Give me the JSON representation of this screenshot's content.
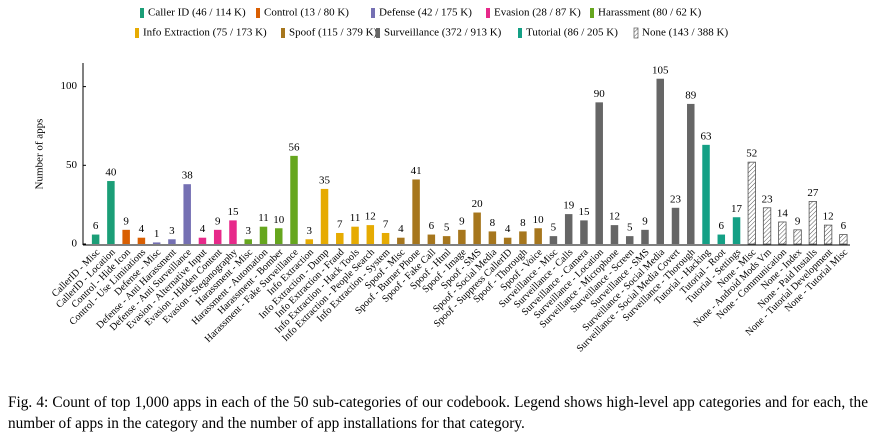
{
  "chart_data": {
    "type": "bar",
    "y_label": "Number of apps",
    "ylim": [
      0,
      115
    ],
    "yticks": [
      0,
      50,
      100
    ],
    "series": [
      {
        "name": "Caller ID (46 / 114 K)",
        "color": "#1b9e77",
        "categories": [
          "CallerID - Misc",
          "CallerID - Location"
        ],
        "values": [
          6,
          40
        ]
      },
      {
        "name": "Control (13 / 80 K)",
        "color": "#d95f02",
        "categories": [
          "Control - Hide Icon",
          "Control - Use Limitations"
        ],
        "values": [
          9,
          4
        ]
      },
      {
        "name": "Defense (42 / 175 K)",
        "color": "#7570b3",
        "categories": [
          "Defense - Misc",
          "Defense - Anti Harassment",
          "Defense - Anti Surveillance"
        ],
        "values": [
          1,
          3,
          38
        ]
      },
      {
        "name": "Evasion (28 / 87 K)",
        "color": "#e7298a",
        "categories": [
          "Evasion - Alternative Input",
          "Evasion - Hidden Content",
          "Evasion - Steganography"
        ],
        "values": [
          4,
          9,
          15
        ]
      },
      {
        "name": "Harassment (80 / 62 K)",
        "color": "#66a61e",
        "categories": [
          "Harassment - Misc",
          "Harassment - Automation",
          "Harassment - Bomber",
          "Harassment - Fake Surveillance"
        ],
        "values": [
          3,
          11,
          10,
          56
        ]
      },
      {
        "name": "Info Extraction (75 / 173 K)",
        "color": "#e6ab02",
        "categories": [
          "Info Extraction",
          "Info Extraction - Dump",
          "Info Extraction - Fraud",
          "Info Extraction - Hack Tools",
          "Info Extraction - People Search",
          "Info Extraction - System"
        ],
        "values": [
          3,
          35,
          7,
          11,
          12,
          7
        ]
      },
      {
        "name": "Spoof (115 / 379 K)",
        "color": "#a6761d",
        "categories": [
          "Spoof - Misc",
          "Spoof - Burner Phone",
          "Spoof - Fake Call",
          "Spoof - Html",
          "Spoof - Image",
          "Spoof - SMS",
          "Spoof - Social Media",
          "Spoof - Suppress CallerID",
          "Spoof - Thorough",
          "Spoof - Voice"
        ],
        "values": [
          4,
          41,
          6,
          5,
          9,
          20,
          8,
          4,
          8,
          10
        ]
      },
      {
        "name": "Surveillance (372 / 913 K)",
        "color": "#666666",
        "categories": [
          "Surveillance - Misc",
          "Surveillance - Calls",
          "Surveillance - Camera",
          "Surveillance - Location",
          "Surveillance - Microphone",
          "Surveillance - Screen",
          "Surveillance - SMS",
          "Surveillance - Social Media",
          "Surveillance - Social Media Covert",
          "Surveillance - Thorough"
        ],
        "values": [
          5,
          19,
          15,
          90,
          12,
          5,
          9,
          105,
          23,
          89
        ]
      },
      {
        "name": "Tutorial (86 / 205 K)",
        "color": "#14a085",
        "categories": [
          "Tutorial - Hacking",
          "Tutorial - Root",
          "Tutorial - Settings"
        ],
        "values": [
          63,
          6,
          17
        ]
      },
      {
        "name": "None (143 / 388 K)",
        "color": "#ffffff",
        "hatch": true,
        "categories": [
          "None - Misc",
          "None - Android Mods Vm",
          "None - Communication",
          "None - Index",
          "None - Paid Installs",
          "None - Tutorial Development",
          "None - Tutorial Misc"
        ],
        "values": [
          52,
          23,
          14,
          9,
          27,
          12,
          6
        ]
      }
    ]
  },
  "caption": "Fig. 4: Count of top 1,000 apps in each of the 50 sub-categories of our codebook. Legend shows high-level app categories and for each, the number of apps in the category and the number of app installations for that category."
}
